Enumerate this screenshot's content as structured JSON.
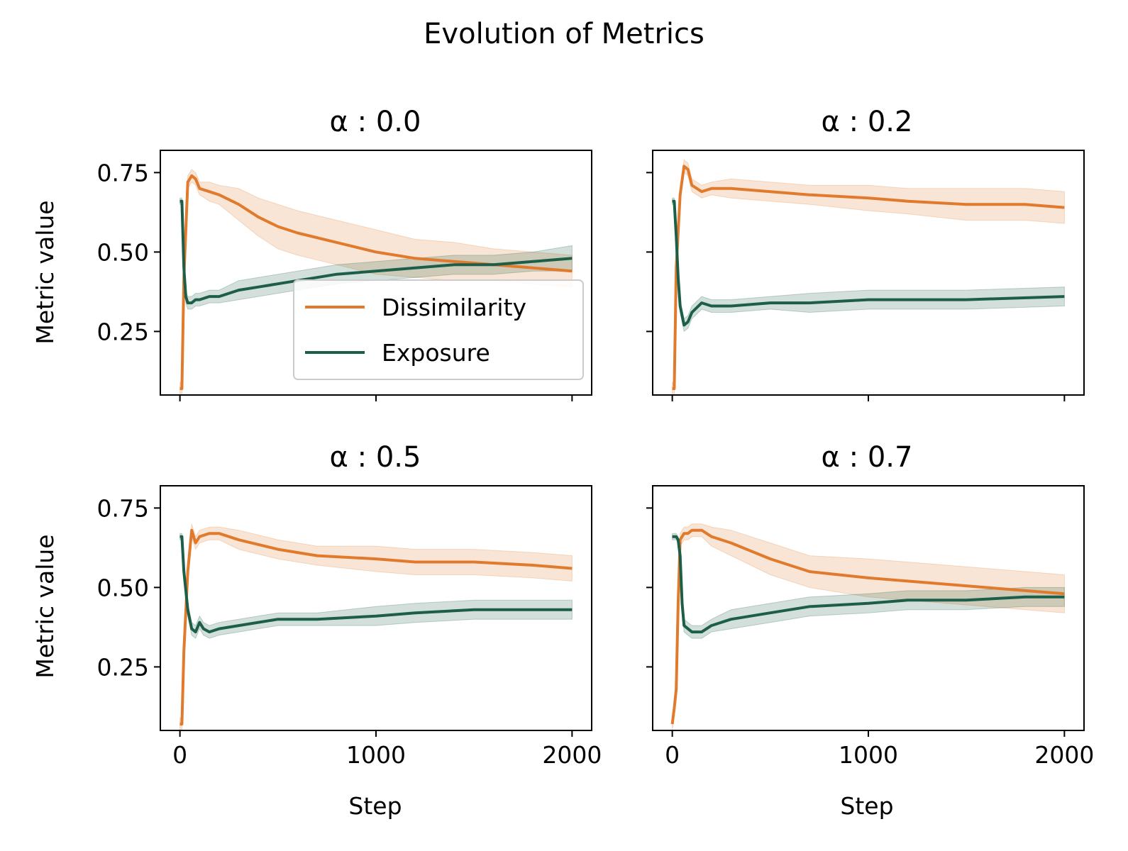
{
  "figure": {
    "title": "Evolution of Metrics",
    "colors": {
      "dissimilarity": "#E07B2E",
      "exposure": "#1C5E48"
    }
  },
  "chart_data": [
    {
      "type": "line",
      "title": "α : 0.0",
      "xlabel": "",
      "ylabel": "Metric value",
      "xlim": [
        -100,
        2100
      ],
      "ylim": [
        0.05,
        0.82
      ],
      "xticks": [
        0,
        1000,
        2000
      ],
      "yticks": [
        0.25,
        0.5,
        0.75
      ],
      "xticklabels_shown": false,
      "yticklabels_shown": true,
      "legend": "lower-right",
      "series": [
        {
          "name": "Dissimilarity",
          "color": "#E07B2E",
          "x": [
            0,
            10,
            20,
            40,
            60,
            80,
            100,
            150,
            200,
            300,
            400,
            500,
            600,
            800,
            1000,
            1200,
            1400,
            1600,
            1800,
            2000
          ],
          "y": [
            0.07,
            0.07,
            0.42,
            0.72,
            0.74,
            0.73,
            0.7,
            0.69,
            0.68,
            0.65,
            0.61,
            0.58,
            0.56,
            0.53,
            0.5,
            0.48,
            0.47,
            0.46,
            0.45,
            0.44
          ],
          "band": [
            0.02,
            0.02,
            0.03,
            0.02,
            0.02,
            0.02,
            0.02,
            0.03,
            0.03,
            0.05,
            0.06,
            0.07,
            0.07,
            0.07,
            0.07,
            0.06,
            0.06,
            0.05,
            0.05,
            0.05
          ]
        },
        {
          "name": "Exposure",
          "color": "#1C5E48",
          "x": [
            0,
            10,
            20,
            30,
            40,
            60,
            80,
            100,
            150,
            200,
            300,
            400,
            500,
            600,
            800,
            1000,
            1200,
            1400,
            1600,
            1800,
            2000
          ],
          "y": [
            0.66,
            0.66,
            0.45,
            0.36,
            0.34,
            0.34,
            0.35,
            0.35,
            0.36,
            0.36,
            0.38,
            0.39,
            0.4,
            0.41,
            0.43,
            0.44,
            0.45,
            0.46,
            0.46,
            0.47,
            0.48
          ],
          "band": [
            0.01,
            0.01,
            0.02,
            0.02,
            0.02,
            0.02,
            0.02,
            0.02,
            0.02,
            0.02,
            0.03,
            0.03,
            0.03,
            0.03,
            0.03,
            0.03,
            0.03,
            0.03,
            0.03,
            0.03,
            0.04
          ]
        }
      ]
    },
    {
      "type": "line",
      "title": "α : 0.2",
      "xlabel": "",
      "ylabel": "",
      "xlim": [
        -100,
        2100
      ],
      "ylim": [
        0.05,
        0.82
      ],
      "xticks": [
        0,
        1000,
        2000
      ],
      "yticks": [
        0.25,
        0.5,
        0.75
      ],
      "xticklabels_shown": false,
      "yticklabels_shown": false,
      "series": [
        {
          "name": "Dissimilarity",
          "color": "#E07B2E",
          "x": [
            0,
            10,
            20,
            40,
            60,
            80,
            100,
            150,
            200,
            300,
            500,
            700,
            1000,
            1200,
            1500,
            1800,
            2000
          ],
          "y": [
            0.07,
            0.07,
            0.45,
            0.68,
            0.77,
            0.76,
            0.71,
            0.69,
            0.7,
            0.7,
            0.69,
            0.68,
            0.67,
            0.66,
            0.65,
            0.65,
            0.64
          ],
          "band": [
            0.02,
            0.02,
            0.03,
            0.02,
            0.02,
            0.02,
            0.02,
            0.02,
            0.02,
            0.03,
            0.03,
            0.03,
            0.04,
            0.04,
            0.05,
            0.05,
            0.05
          ]
        },
        {
          "name": "Exposure",
          "color": "#1C5E48",
          "x": [
            0,
            10,
            20,
            30,
            40,
            60,
            80,
            100,
            150,
            200,
            300,
            500,
            700,
            1000,
            1500,
            2000
          ],
          "y": [
            0.66,
            0.66,
            0.55,
            0.42,
            0.33,
            0.27,
            0.28,
            0.31,
            0.34,
            0.33,
            0.33,
            0.34,
            0.34,
            0.35,
            0.35,
            0.36
          ],
          "band": [
            0.01,
            0.01,
            0.02,
            0.02,
            0.02,
            0.02,
            0.02,
            0.02,
            0.02,
            0.02,
            0.02,
            0.02,
            0.03,
            0.03,
            0.03,
            0.03
          ]
        }
      ]
    },
    {
      "type": "line",
      "title": "α : 0.5",
      "xlabel": "Step",
      "ylabel": "Metric value",
      "xlim": [
        -100,
        2100
      ],
      "ylim": [
        0.05,
        0.82
      ],
      "xticks": [
        0,
        1000,
        2000
      ],
      "yticks": [
        0.25,
        0.5,
        0.75
      ],
      "xticklabels_shown": true,
      "yticklabels_shown": true,
      "series": [
        {
          "name": "Dissimilarity",
          "color": "#E07B2E",
          "x": [
            0,
            10,
            20,
            40,
            60,
            80,
            100,
            150,
            200,
            300,
            500,
            700,
            1000,
            1200,
            1500,
            1800,
            2000
          ],
          "y": [
            0.07,
            0.07,
            0.3,
            0.55,
            0.68,
            0.64,
            0.66,
            0.67,
            0.67,
            0.65,
            0.62,
            0.6,
            0.59,
            0.58,
            0.58,
            0.57,
            0.56
          ],
          "band": [
            0.02,
            0.02,
            0.03,
            0.02,
            0.02,
            0.02,
            0.02,
            0.02,
            0.02,
            0.03,
            0.03,
            0.03,
            0.04,
            0.04,
            0.04,
            0.04,
            0.04
          ]
        },
        {
          "name": "Exposure",
          "color": "#1C5E48",
          "x": [
            0,
            10,
            20,
            40,
            60,
            80,
            100,
            120,
            150,
            200,
            300,
            500,
            700,
            1000,
            1200,
            1500,
            1800,
            2000
          ],
          "y": [
            0.66,
            0.66,
            0.55,
            0.43,
            0.37,
            0.36,
            0.39,
            0.37,
            0.36,
            0.37,
            0.38,
            0.4,
            0.4,
            0.41,
            0.42,
            0.43,
            0.43,
            0.43
          ],
          "band": [
            0.01,
            0.01,
            0.02,
            0.02,
            0.02,
            0.02,
            0.02,
            0.02,
            0.02,
            0.02,
            0.02,
            0.02,
            0.02,
            0.03,
            0.03,
            0.03,
            0.03,
            0.03
          ]
        }
      ]
    },
    {
      "type": "line",
      "title": "α : 0.7",
      "xlabel": "Step",
      "ylabel": "",
      "xlim": [
        -100,
        2100
      ],
      "ylim": [
        0.05,
        0.82
      ],
      "xticks": [
        0,
        1000,
        2000
      ],
      "yticks": [
        0.25,
        0.5,
        0.75
      ],
      "xticklabels_shown": true,
      "yticklabels_shown": false,
      "series": [
        {
          "name": "Dissimilarity",
          "color": "#E07B2E",
          "x": [
            0,
            10,
            20,
            30,
            40,
            60,
            80,
            100,
            150,
            200,
            300,
            500,
            700,
            1000,
            1200,
            1400,
            1600,
            1800,
            2000
          ],
          "y": [
            0.07,
            0.12,
            0.18,
            0.45,
            0.65,
            0.67,
            0.67,
            0.68,
            0.68,
            0.66,
            0.64,
            0.59,
            0.55,
            0.53,
            0.52,
            0.51,
            0.5,
            0.49,
            0.48
          ],
          "band": [
            0.02,
            0.02,
            0.02,
            0.03,
            0.02,
            0.02,
            0.02,
            0.02,
            0.02,
            0.03,
            0.04,
            0.05,
            0.05,
            0.06,
            0.06,
            0.06,
            0.06,
            0.06,
            0.06
          ]
        },
        {
          "name": "Exposure",
          "color": "#1C5E48",
          "x": [
            0,
            10,
            20,
            30,
            40,
            50,
            60,
            80,
            100,
            150,
            200,
            300,
            500,
            700,
            1000,
            1200,
            1500,
            1800,
            2000
          ],
          "y": [
            0.66,
            0.66,
            0.66,
            0.65,
            0.6,
            0.45,
            0.38,
            0.37,
            0.36,
            0.36,
            0.38,
            0.4,
            0.42,
            0.44,
            0.45,
            0.46,
            0.46,
            0.47,
            0.47
          ],
          "band": [
            0.01,
            0.01,
            0.01,
            0.01,
            0.02,
            0.02,
            0.02,
            0.02,
            0.02,
            0.02,
            0.02,
            0.03,
            0.03,
            0.03,
            0.03,
            0.03,
            0.03,
            0.03,
            0.03
          ]
        }
      ]
    }
  ]
}
